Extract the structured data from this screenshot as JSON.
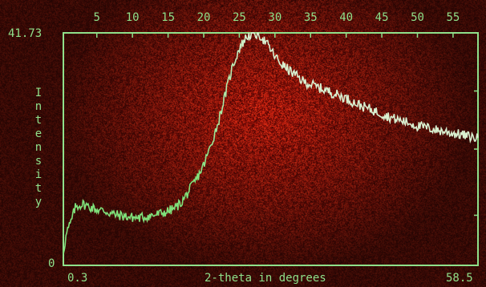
{
  "chart_data": {
    "type": "line",
    "title": "",
    "xlabel": "2-theta in degrees",
    "ylabel": "Intensity",
    "xlim": [
      0.3,
      58.5
    ],
    "ylim": [
      0,
      41.73
    ],
    "x_tick_values": [
      5,
      10,
      15,
      20,
      25,
      30,
      35,
      40,
      45,
      50,
      55
    ],
    "y_axis_labels": [
      "41.73",
      "0"
    ],
    "x_axis_end_labels": [
      "0.3",
      "58.5"
    ],
    "grid": false,
    "series": [
      {
        "x": [
          0.3,
          0.8,
          1.3,
          2.0,
          3.0,
          4.0,
          5.0,
          6.0,
          7.0,
          8.0,
          9.0,
          10.0,
          11.0,
          12.0,
          13.0,
          14.0,
          15.0,
          16.0,
          17.0,
          18.0,
          19.0,
          20.0,
          21.0,
          22.0,
          23.0,
          24.0,
          25.0,
          26.0,
          27.0,
          28.0,
          29.0,
          30.0,
          31.0,
          32.0,
          33.0,
          34.0,
          35.0,
          36.0,
          37.0,
          38.0,
          39.0,
          40.0,
          41.0,
          42.0,
          43.0,
          44.0,
          45.0,
          46.0,
          47.0,
          48.0,
          49.0,
          50.0,
          51.0,
          52.0,
          53.0,
          54.0,
          55.0,
          56.0,
          57.0,
          58.5
        ],
        "y": [
          2.5,
          6.0,
          7.5,
          10.5,
          11.0,
          10.5,
          10.0,
          9.8,
          9.3,
          9.0,
          8.8,
          8.6,
          8.5,
          8.8,
          9.0,
          9.3,
          9.7,
          10.3,
          11.5,
          13.5,
          15.5,
          18.0,
          21.5,
          25.5,
          30.5,
          35.5,
          39.0,
          41.0,
          41.7,
          41.2,
          39.5,
          37.5,
          36.0,
          35.0,
          34.0,
          33.0,
          32.5,
          32.0,
          31.5,
          31.0,
          30.5,
          30.0,
          29.3,
          28.7,
          28.2,
          27.7,
          27.2,
          26.7,
          26.2,
          25.9,
          25.5,
          25.0,
          24.8,
          24.5,
          24.2,
          24.0,
          23.7,
          23.5,
          23.2,
          22.8
        ]
      }
    ]
  },
  "colors": {
    "axis": "#8fe08a",
    "trace": "#d9f0d0",
    "trace_low": "#7fe07a",
    "background_dark": "#1a0402",
    "background_hot": "#c8351a"
  }
}
